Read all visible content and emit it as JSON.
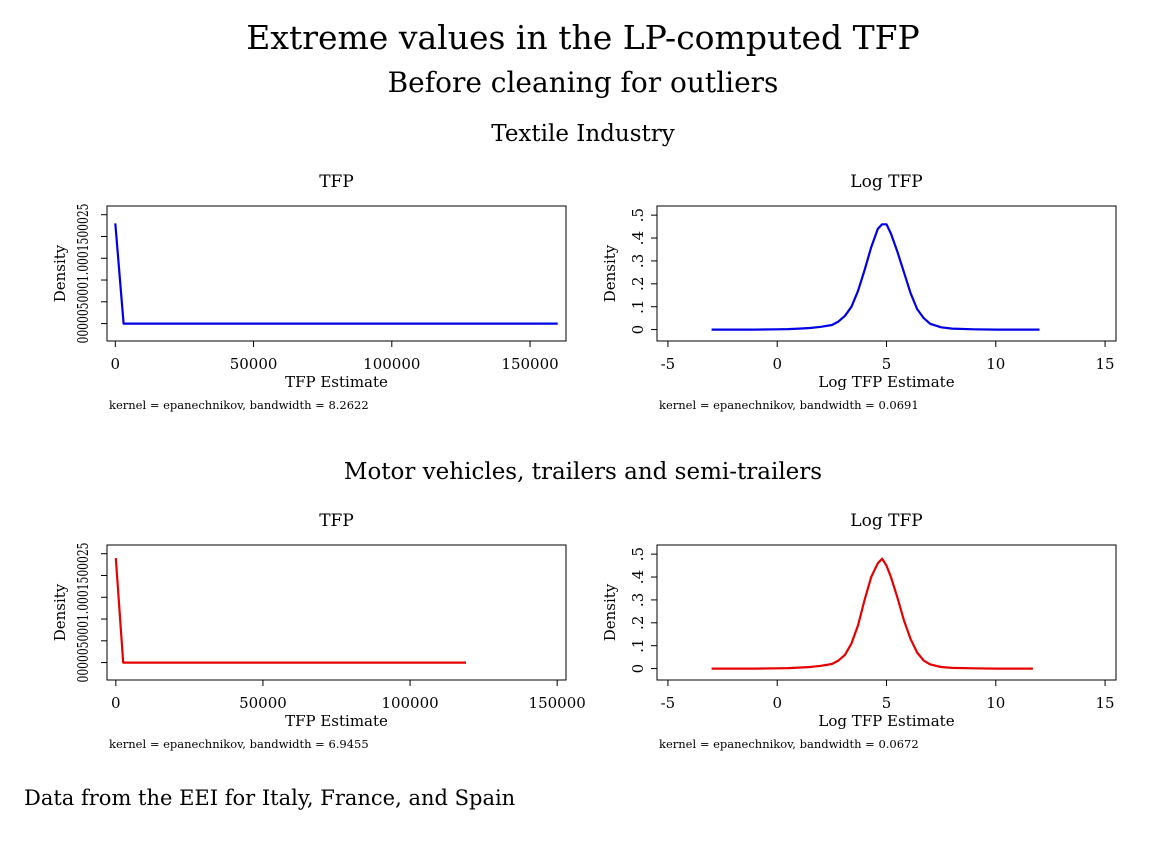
{
  "title": "Extreme values in the LP-computed TFP",
  "subtitle": "Before cleaning for outliers",
  "footer": "Data from the EEI for Italy, France, and Spain",
  "groups": [
    {
      "title": "Textile Industry"
    },
    {
      "title": "Motor vehicles, trailers and semi-trailers"
    }
  ],
  "chart_data": [
    {
      "type": "line",
      "group": "Textile Industry",
      "title": "TFP",
      "xlabel": "TFP Estimate",
      "ylabel": "Density",
      "note": "kernel = epanechnikov, bandwidth = 8.2622",
      "color": "#0000e6",
      "xlim": [
        -3000,
        163000
      ],
      "ylim": [
        -4e-05,
        0.00027
      ],
      "xticks": [
        0,
        50000,
        100000,
        150000
      ],
      "xtick_labels": [
        "0",
        "50000",
        "100000",
        "150000"
      ],
      "yticks": [
        0,
        5e-05,
        0.0001,
        0.00015,
        0.0002,
        0.00025
      ],
      "yticks_text": "0000050001.0001500025",
      "x": [
        0,
        3000,
        20000,
        60000,
        100000,
        140000,
        160000
      ],
      "y": [
        0.00023,
        0,
        0,
        0,
        0,
        0,
        0
      ]
    },
    {
      "type": "line",
      "group": "Textile Industry",
      "title": "Log TFP",
      "xlabel": "Log TFP Estimate",
      "ylabel": "Density",
      "note": "kernel = epanechnikov, bandwidth = 0.0691",
      "color": "#0000e6",
      "xlim": [
        -5.5,
        15.5
      ],
      "ylim": [
        -0.05,
        0.54
      ],
      "xticks": [
        -5,
        0,
        5,
        10,
        15
      ],
      "xtick_labels": [
        "-5",
        "0",
        "5",
        "10",
        "15"
      ],
      "yticks": [
        0,
        0.1,
        0.2,
        0.3,
        0.4,
        0.5
      ],
      "ytick_labels": [
        "0",
        ".1",
        ".2",
        ".3",
        ".4",
        ".5"
      ],
      "x": [
        -3,
        -1,
        0,
        0.5,
        1,
        1.5,
        2,
        2.5,
        2.8,
        3.1,
        3.4,
        3.7,
        4,
        4.3,
        4.6,
        4.8,
        5,
        5.2,
        5.5,
        5.8,
        6.1,
        6.4,
        6.7,
        7,
        7.5,
        8,
        9,
        10,
        12
      ],
      "y": [
        0,
        0,
        0.001,
        0.002,
        0.004,
        0.007,
        0.012,
        0.02,
        0.035,
        0.06,
        0.1,
        0.17,
        0.26,
        0.36,
        0.44,
        0.46,
        0.46,
        0.42,
        0.34,
        0.25,
        0.16,
        0.09,
        0.05,
        0.025,
        0.01,
        0.004,
        0.001,
        0,
        0
      ]
    },
    {
      "type": "line",
      "group": "Motor vehicles, trailers and semi-trailers",
      "title": "TFP",
      "xlabel": "TFP Estimate",
      "ylabel": "Density",
      "note": "kernel = epanechnikov, bandwidth = 6.9455",
      "color": "#e60000",
      "xlim": [
        -3000,
        153000
      ],
      "ylim": [
        -4e-05,
        0.00027
      ],
      "xticks": [
        0,
        50000,
        100000,
        150000
      ],
      "xtick_labels": [
        "0",
        "50000",
        "100000",
        "150000"
      ],
      "yticks": [
        0,
        5e-05,
        0.0001,
        0.00015,
        0.0002,
        0.00025
      ],
      "yticks_text": "0000050001.0001500025",
      "x": [
        0,
        2500,
        20000,
        60000,
        100000,
        119000
      ],
      "y": [
        0.00024,
        0,
        0,
        0,
        0,
        0
      ]
    },
    {
      "type": "line",
      "group": "Motor vehicles, trailers and semi-trailers",
      "title": "Log TFP",
      "xlabel": "Log TFP Estimate",
      "ylabel": "Density",
      "note": "kernel = epanechnikov, bandwidth = 0.0672",
      "color": "#e60000",
      "xlim": [
        -5.5,
        15.5
      ],
      "ylim": [
        -0.05,
        0.54
      ],
      "xticks": [
        -5,
        0,
        5,
        10,
        15
      ],
      "xtick_labels": [
        "-5",
        "0",
        "5",
        "10",
        "15"
      ],
      "yticks": [
        0,
        0.1,
        0.2,
        0.3,
        0.4,
        0.5
      ],
      "ytick_labels": [
        "0",
        ".1",
        ".2",
        ".3",
        ".4",
        ".5"
      ],
      "x": [
        -3,
        -1,
        0,
        0.5,
        1,
        1.5,
        2,
        2.5,
        2.8,
        3.1,
        3.4,
        3.7,
        4,
        4.3,
        4.6,
        4.8,
        5,
        5.2,
        5.5,
        5.8,
        6.1,
        6.4,
        6.7,
        7,
        7.5,
        8,
        9,
        10,
        11.7
      ],
      "y": [
        0,
        0,
        0.001,
        0.002,
        0.004,
        0.007,
        0.012,
        0.02,
        0.035,
        0.06,
        0.11,
        0.19,
        0.3,
        0.4,
        0.46,
        0.48,
        0.45,
        0.4,
        0.31,
        0.21,
        0.13,
        0.07,
        0.035,
        0.018,
        0.007,
        0.003,
        0.001,
        0,
        0
      ]
    }
  ]
}
